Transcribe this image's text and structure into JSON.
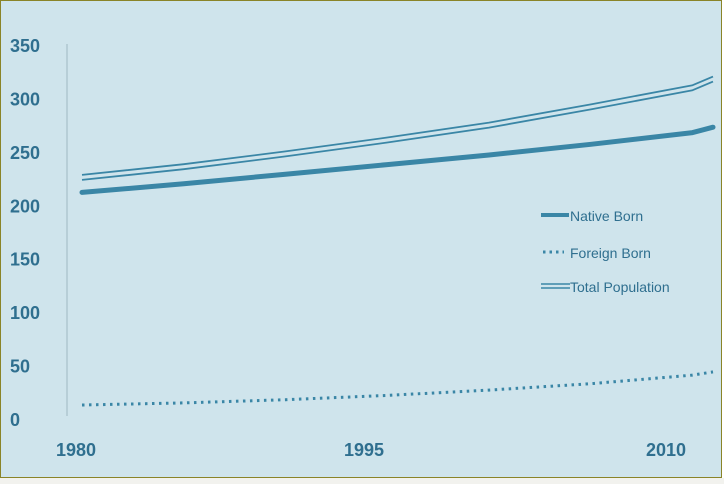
{
  "chart_data": {
    "type": "line",
    "x_ticks": [
      "1980",
      "1995",
      "2010"
    ],
    "y_ticks": [
      "0",
      "50",
      "100",
      "150",
      "200",
      "250",
      "300",
      "350"
    ],
    "xlim": [
      1980,
      2011
    ],
    "ylim": [
      0,
      350
    ],
    "legend_position": "right-middle",
    "grid": false,
    "series": [
      {
        "name": "Native Born",
        "style": "thick-solid",
        "color": "#3a86a6",
        "x": [
          1980,
          1985,
          1990,
          1995,
          2000,
          2005,
          2010,
          2011
        ],
        "values": [
          213,
          221,
          230,
          239,
          248,
          258,
          269,
          274
        ]
      },
      {
        "name": "Foreign Born",
        "style": "dotted",
        "color": "#3a86a6",
        "x": [
          1980,
          1985,
          1990,
          1995,
          2000,
          2005,
          2010,
          2011
        ],
        "values": [
          14,
          16,
          19,
          23,
          28,
          34,
          42,
          45
        ]
      },
      {
        "name": "Total Population",
        "style": "double-line",
        "color": "#3a86a6",
        "x": [
          1980,
          1985,
          1990,
          1995,
          2000,
          2005,
          2010,
          2011
        ],
        "values": [
          227,
          237,
          249,
          262,
          276,
          293,
          311,
          319
        ]
      }
    ]
  }
}
